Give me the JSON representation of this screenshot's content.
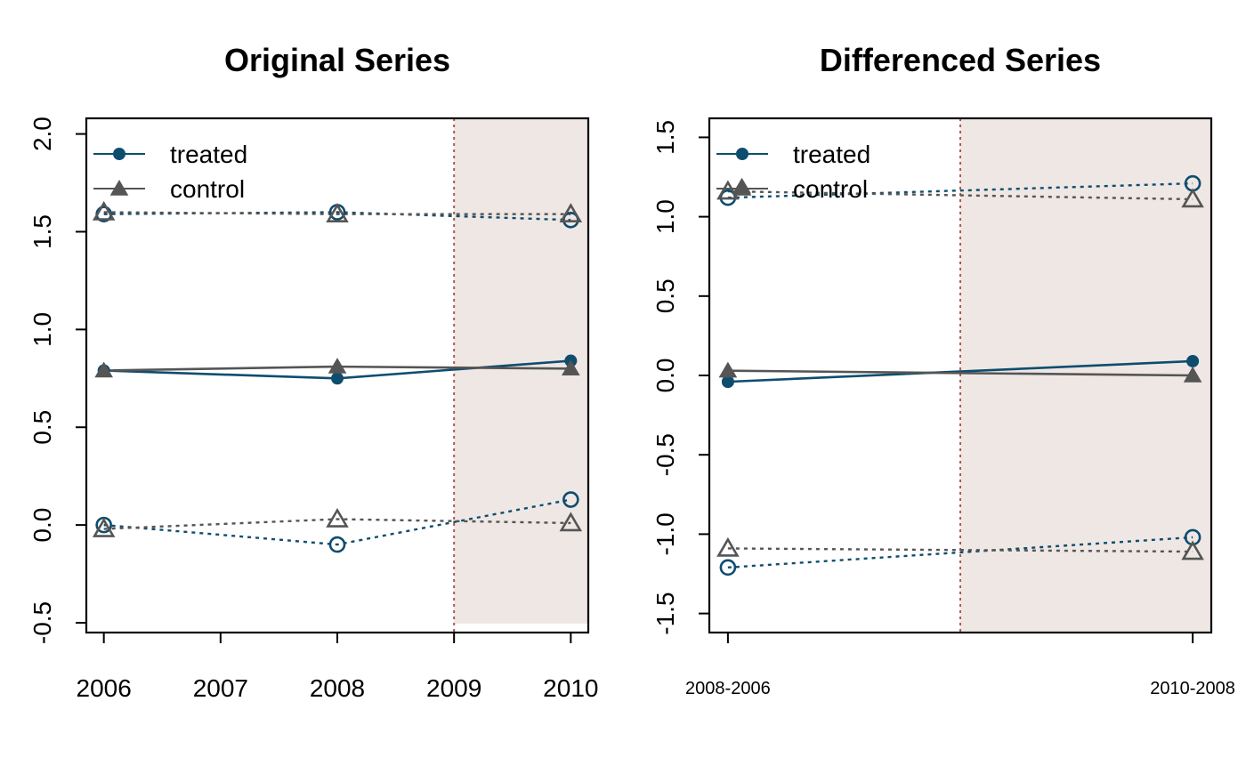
{
  "chart_data": [
    {
      "type": "line",
      "title": "Original Series",
      "xlabel": "",
      "ylabel": "",
      "x": [
        2006,
        2008,
        2010
      ],
      "xticks": [
        2006,
        2007,
        2008,
        2009,
        2010
      ],
      "xtick_labels": [
        "2006",
        "2007",
        "2008",
        "2009",
        "2010"
      ],
      "xlim": [
        2005.85,
        2010.15
      ],
      "ylim": [
        -0.55,
        2.08
      ],
      "yticks": [
        -0.5,
        0.0,
        0.5,
        1.0,
        1.5,
        2.0
      ],
      "ytick_labels": [
        "-0.5",
        "0.0",
        "0.5",
        "1.0",
        "1.5",
        "2.0"
      ],
      "treatment_start": 2009,
      "shaded_region": [
        2009,
        2010.15
      ],
      "shade_color": "#efe7e4",
      "vline_color": "#b05a50",
      "legend": {
        "position": "top-left",
        "entries": [
          {
            "label": "treated",
            "color": "#0e4d6e",
            "marker": "circle"
          },
          {
            "label": "control",
            "color": "#555555",
            "marker": "triangle"
          }
        ]
      },
      "series": [
        {
          "group": "treated",
          "style": "solid",
          "color": "#0e4d6e",
          "marker": "circle-filled",
          "values": [
            0.79,
            0.75,
            0.84
          ]
        },
        {
          "group": "treated",
          "style": "dotted",
          "color": "#0e4d6e",
          "marker": "circle-open",
          "values": [
            1.59,
            1.6,
            1.56
          ]
        },
        {
          "group": "treated",
          "style": "dotted",
          "color": "#0e4d6e",
          "marker": "circle-open",
          "values": [
            0.0,
            -0.1,
            0.13
          ]
        },
        {
          "group": "control",
          "style": "solid",
          "color": "#555555",
          "marker": "triangle-filled",
          "values": [
            0.79,
            0.81,
            0.8
          ]
        },
        {
          "group": "control",
          "style": "dotted",
          "color": "#555555",
          "marker": "triangle-open",
          "values": [
            1.6,
            1.59,
            1.59
          ]
        },
        {
          "group": "control",
          "style": "dotted",
          "color": "#555555",
          "marker": "triangle-open",
          "values": [
            -0.02,
            0.03,
            0.01
          ]
        }
      ]
    },
    {
      "type": "line",
      "title": "Differenced Series",
      "xlabel": "",
      "ylabel": "",
      "x": [
        1,
        2
      ],
      "xticks": [
        1,
        2
      ],
      "xtick_labels": [
        "2008-2006",
        "2010-2008"
      ],
      "xlim": [
        0.96,
        2.04
      ],
      "ylim": [
        -1.62,
        1.62
      ],
      "yticks": [
        -1.5,
        -1.0,
        -0.5,
        0.0,
        0.5,
        1.0,
        1.5
      ],
      "ytick_labels": [
        "-1.5",
        "-1.0",
        "-0.5",
        "0.0",
        "0.5",
        "1.0",
        "1.5"
      ],
      "treatment_start": 1.5,
      "shaded_region": [
        1.5,
        2.04
      ],
      "shade_color": "#efe7e4",
      "vline_color": "#b05a50",
      "legend": {
        "position": "top-left",
        "entries": [
          {
            "label": "treated",
            "color": "#0e4d6e",
            "marker": "circle"
          },
          {
            "label": "control",
            "color": "#555555",
            "marker": "triangle"
          }
        ]
      },
      "series": [
        {
          "group": "treated",
          "style": "solid",
          "color": "#0e4d6e",
          "marker": "circle-filled",
          "values": [
            -0.04,
            0.09
          ]
        },
        {
          "group": "treated",
          "style": "dotted",
          "color": "#0e4d6e",
          "marker": "circle-open",
          "values": [
            1.12,
            1.21
          ]
        },
        {
          "group": "treated",
          "style": "dotted",
          "color": "#0e4d6e",
          "marker": "circle-open",
          "values": [
            -1.21,
            -1.02
          ]
        },
        {
          "group": "control",
          "style": "solid",
          "color": "#555555",
          "marker": "triangle-filled",
          "values": [
            0.03,
            0.0
          ]
        },
        {
          "group": "control",
          "style": "dotted",
          "color": "#555555",
          "marker": "triangle-open",
          "values": [
            1.16,
            1.11
          ]
        },
        {
          "group": "control",
          "style": "dotted",
          "color": "#555555",
          "marker": "triangle-open",
          "values": [
            -1.09,
            -1.11
          ]
        }
      ],
      "extra_markers": [
        {
          "group": "control",
          "x": 1.03,
          "y": 1.19,
          "marker": "triangle-filled",
          "color": "#555555"
        }
      ]
    }
  ]
}
